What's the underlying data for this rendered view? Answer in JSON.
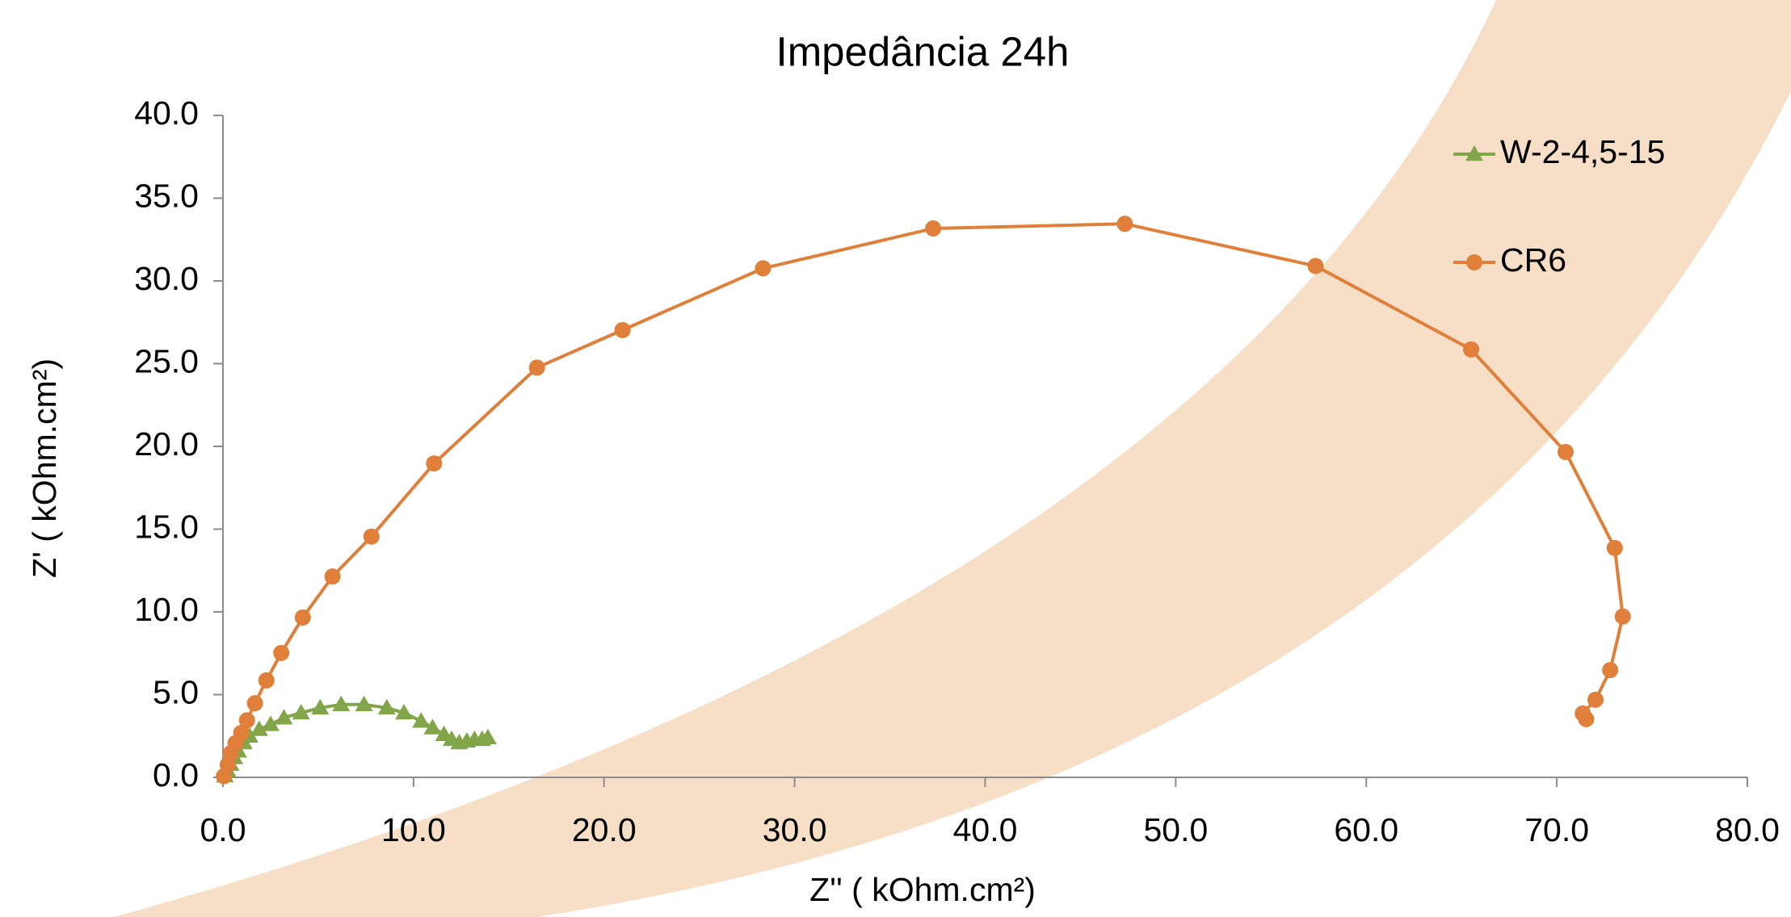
{
  "chart_data": {
    "type": "scatter",
    "title": "Impedância 24h",
    "xlabel": "Z'' ( kOhm.cm²)",
    "ylabel": "Z' ( kOhm.cm²)",
    "xlim": [
      0,
      80
    ],
    "ylim": [
      0,
      40
    ],
    "xticks": [
      {
        "value": 0,
        "label": "0.0"
      },
      {
        "value": 10,
        "label": "10.0"
      },
      {
        "value": 20,
        "label": "20.0"
      },
      {
        "value": 30,
        "label": "30.0"
      },
      {
        "value": 40,
        "label": "40.0"
      },
      {
        "value": 50,
        "label": "50.0"
      },
      {
        "value": 60,
        "label": "60.0"
      },
      {
        "value": 70,
        "label": "70.0"
      },
      {
        "value": 80,
        "label": "80.0"
      }
    ],
    "yticks": [
      {
        "value": 0,
        "label": "0.0"
      },
      {
        "value": 5,
        "label": "5.0"
      },
      {
        "value": 10,
        "label": "10.0"
      },
      {
        "value": 15,
        "label": "15.0"
      },
      {
        "value": 20,
        "label": "20.0"
      },
      {
        "value": 25,
        "label": "25.0"
      },
      {
        "value": 30,
        "label": "30.0"
      },
      {
        "value": 35,
        "label": "35.0"
      },
      {
        "value": 40,
        "label": "40.0"
      }
    ],
    "grid": false,
    "legend": "upper right",
    "series": [
      {
        "name": "W-2-4,5-15",
        "color": "#82a54a",
        "marker": "triangle",
        "x": [
          0.1,
          0.25,
          0.4,
          0.6,
          0.8,
          1.1,
          1.4,
          1.9,
          2.5,
          3.2,
          4.1,
          5.1,
          6.2,
          7.4,
          8.6,
          9.5,
          10.4,
          11.0,
          11.6,
          12.0,
          12.4,
          12.8,
          13.2,
          13.6,
          13.9
        ],
        "values": [
          0.1,
          0.4,
          0.8,
          1.2,
          1.6,
          2.1,
          2.5,
          2.9,
          3.2,
          3.6,
          3.9,
          4.2,
          4.4,
          4.4,
          4.2,
          3.9,
          3.4,
          3.0,
          2.6,
          2.3,
          2.1,
          2.2,
          2.3,
          2.3,
          2.4
        ]
      },
      {
        "name": "CR6",
        "color": "#e07f3a",
        "marker": "circle",
        "x": [
          0.05,
          0.25,
          0.4,
          0.66,
          0.96,
          1.26,
          1.68,
          2.28,
          3.06,
          4.19,
          5.75,
          7.79,
          11.08,
          16.48,
          20.97,
          28.34,
          37.27,
          47.33,
          57.34,
          65.5,
          70.46,
          73.04,
          73.46,
          72.8,
          72.03,
          71.36,
          71.54
        ],
        "values": [
          0.07,
          0.76,
          1.45,
          2.07,
          2.69,
          3.45,
          4.48,
          5.86,
          7.52,
          9.66,
          12.14,
          14.55,
          18.97,
          24.76,
          27.03,
          30.76,
          33.17,
          33.45,
          30.9,
          25.86,
          19.66,
          13.86,
          9.72,
          6.48,
          4.69,
          3.86,
          3.52
        ]
      }
    ]
  }
}
